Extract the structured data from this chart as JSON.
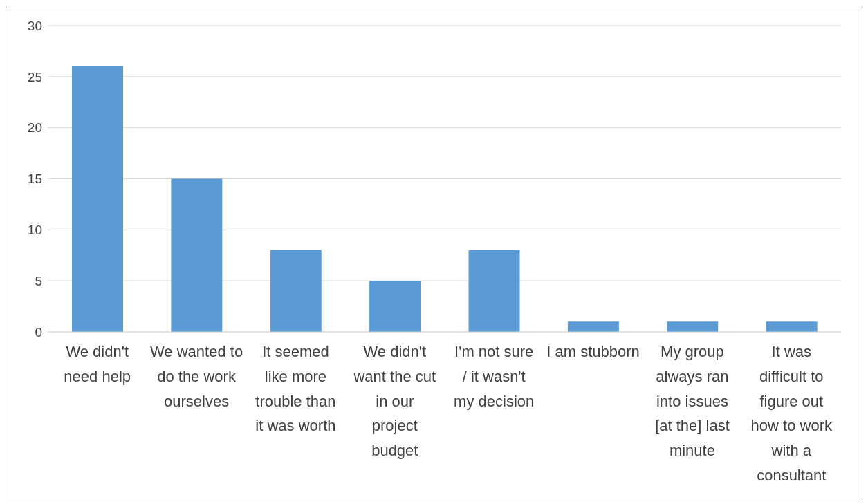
{
  "chart_data": {
    "type": "bar",
    "categories": [
      "We didn't need help",
      "We wanted to do the work ourselves",
      "It seemed like more trouble than it was worth",
      "We didn't want the cut in our project budget",
      "I'm not sure / it wasn't my decision",
      "I am stubborn",
      "My group always ran into issues [at the] last minute",
      "It was difficult to figure out how to work with a consultant"
    ],
    "values": [
      26,
      15,
      8,
      5,
      8,
      1,
      1,
      1
    ],
    "color": "#5b9bd5",
    "ylim": [
      0,
      30
    ],
    "yticks": [
      0,
      5,
      10,
      15,
      20,
      25,
      30
    ],
    "grid": "y",
    "legend": false
  }
}
